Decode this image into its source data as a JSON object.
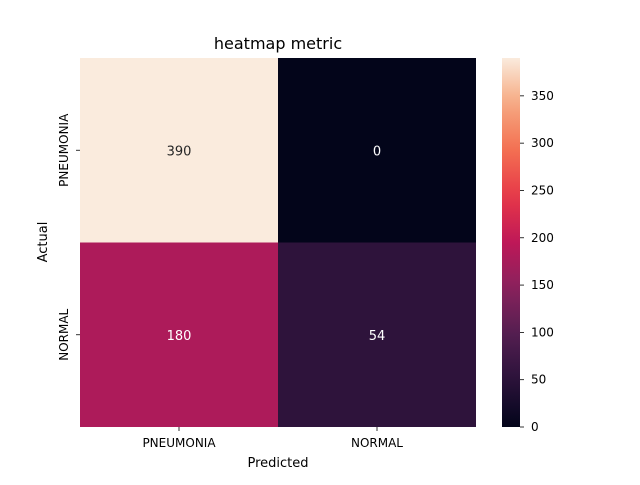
{
  "chart_data": {
    "type": "heatmap",
    "title": "heatmap metric",
    "xlabel": "Predicted",
    "ylabel": "Actual",
    "x_categories": [
      "PNEUMONIA",
      "NORMAL"
    ],
    "y_categories": [
      "PNEUMONIA",
      "NORMAL"
    ],
    "values": [
      [
        390,
        0
      ],
      [
        180,
        54
      ]
    ],
    "colorbar": {
      "range": [
        0,
        390
      ],
      "ticks": [
        0,
        50,
        100,
        150,
        200,
        250,
        300,
        350
      ]
    },
    "colormap": "rocket",
    "grid": false,
    "legend": "colorbar-right"
  }
}
